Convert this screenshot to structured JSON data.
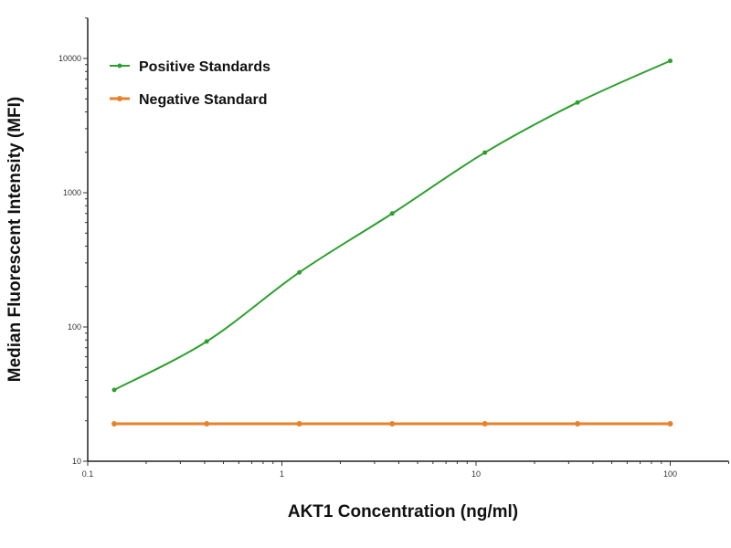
{
  "chart_data": {
    "type": "line",
    "title": "",
    "xlabel": "AKT1 Concentration (ng/ml)",
    "ylabel": "Median  Fluorescent Intensity  (MFI)",
    "xscale": "log",
    "yscale": "log",
    "xlim": [
      0.1,
      200
    ],
    "ylim": [
      10,
      20000
    ],
    "xticks": [
      0.1,
      1,
      10,
      100
    ],
    "xtick_labels": [
      "0.1",
      "1",
      "10",
      "100"
    ],
    "yticks": [
      10,
      100,
      1000,
      10000
    ],
    "ytick_labels": [
      "10",
      "100",
      "1000",
      "10000"
    ],
    "grid": false,
    "legend_position": "top-left",
    "x": [
      0.137,
      0.41,
      1.23,
      3.7,
      11.1,
      33.3,
      100
    ],
    "series": [
      {
        "name": "Positive Standards",
        "color": "#2ca02c",
        "values": [
          34,
          78,
          255,
          700,
          1990,
          4700,
          9600
        ]
      },
      {
        "name": "Negative Standard",
        "color": "#e8822a",
        "values": [
          19,
          19,
          19,
          19,
          19,
          19,
          19
        ]
      }
    ]
  }
}
